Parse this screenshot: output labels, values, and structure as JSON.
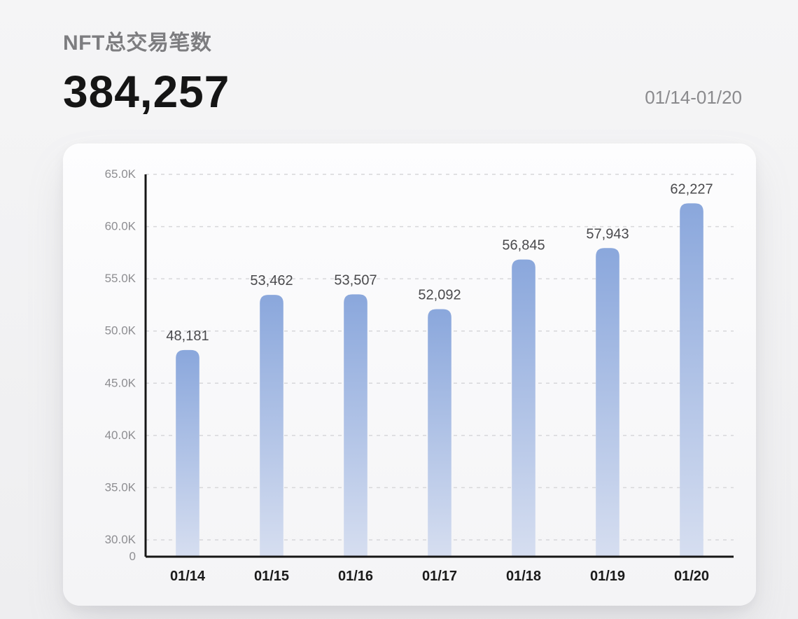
{
  "header": {
    "title": "NFT总交易笔数",
    "total": "384,257",
    "date_range": "01/14-01/20"
  },
  "chart": {
    "type": "bar",
    "categories": [
      "01/14",
      "01/15",
      "01/16",
      "01/17",
      "01/18",
      "01/19",
      "01/20"
    ],
    "values": [
      48181,
      53462,
      53507,
      52092,
      56845,
      57943,
      62227
    ],
    "value_labels": [
      "48,181",
      "53,462",
      "53,507",
      "52,092",
      "56,845",
      "57,943",
      "62,227"
    ],
    "yticks": [
      0,
      30000,
      35000,
      40000,
      45000,
      50000,
      55000,
      60000,
      65000
    ],
    "ytick_labels": [
      "0",
      "30.0K",
      "35.0K",
      "40.0K",
      "45.0K",
      "50.0K",
      "55.0K",
      "60.0K",
      "65.0K"
    ],
    "bar_gradient_top": "#8aa7dc",
    "bar_gradient_bottom": "#d6def0",
    "bar_width_ratio": 0.28,
    "bar_border_radius": 12,
    "background_color": "#fdfdfe",
    "grid_color": "#d7d7da",
    "axis_color": "#161616",
    "ytick_label_color": "#8e8e92",
    "xtick_label_color": "#1a1a1a",
    "value_label_color": "#4a4a4d",
    "title_fontsize": 30,
    "big_number_fontsize": 64,
    "ytick_fontsize": 17,
    "xtick_fontsize": 20,
    "value_label_fontsize": 20,
    "axis_break": {
      "below": 0,
      "above": 30000
    }
  }
}
